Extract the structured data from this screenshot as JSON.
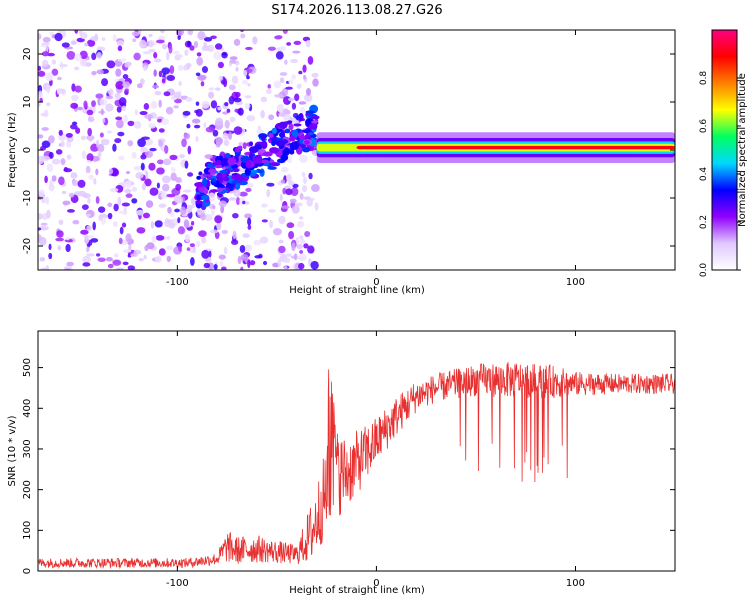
{
  "title": "S174.2026.113.08.27.G26",
  "chart_data": [
    {
      "type": "heatmap",
      "xlabel": "Height of straight line (km)",
      "ylabel": "Frequency (Hz)",
      "xlim": [
        -170,
        150
      ],
      "ylim": [
        -25,
        25
      ],
      "xticks": [
        -100,
        0,
        100
      ],
      "xtick_labels": [
        "-100",
        "0",
        "100"
      ],
      "yticks": [
        -20,
        -10,
        0,
        10,
        20
      ],
      "ytick_labels": [
        "-20",
        "-10",
        "0",
        "10",
        "20"
      ],
      "grid": false,
      "colorbar": {
        "label": "Normalized spectral amplitude",
        "range": [
          0,
          1
        ],
        "ticks": [
          0.0,
          0.2,
          0.4,
          0.6,
          0.8
        ],
        "tick_labels": [
          "0.0",
          "0.2",
          "0.4",
          "0.6",
          "0.8"
        ],
        "colormap": [
          "#ffffff",
          "#e0c8ff",
          "#9000ff",
          "#0000ff",
          "#00d8ff",
          "#00ff60",
          "#ffff00",
          "#ff8000",
          "#ff0000",
          "#ff0080"
        ]
      },
      "regions": [
        {
          "name": "scattered-noise",
          "x_range": [
            -170,
            -40
          ],
          "freq_range": [
            -25,
            25
          ],
          "amplitude": 0.1
        },
        {
          "name": "onset-ramp",
          "x_range": [
            -90,
            -30
          ],
          "freq_start": -8,
          "freq_end": 5,
          "amplitude": 0.3
        },
        {
          "name": "main-line",
          "x_range": [
            -30,
            150
          ],
          "freq": 0.5,
          "amplitude": 0.9
        }
      ]
    },
    {
      "type": "line",
      "xlabel": "Height of straight line (km)",
      "ylabel": "SNR (10 * v/v)",
      "xlim": [
        -170,
        150
      ],
      "ylim": [
        0,
        590
      ],
      "xticks": [
        -100,
        0,
        100
      ],
      "xtick_labels": [
        "-100",
        "0",
        "100"
      ],
      "yticks": [
        0,
        100,
        200,
        300,
        400,
        500
      ],
      "ytick_labels": [
        "0",
        "100",
        "200",
        "300",
        "400",
        "500"
      ],
      "grid": false,
      "series": [
        {
          "name": "SNR",
          "color": "#e83030",
          "envelope_x": [
            -170,
            -95,
            -80,
            -75,
            -70,
            -60,
            -55,
            -40,
            -32,
            -25,
            -20,
            -15,
            -5,
            0,
            10,
            20,
            30,
            50,
            70,
            90,
            100,
            120,
            150
          ],
          "envelope_y": [
            20,
            20,
            30,
            60,
            50,
            55,
            50,
            40,
            100,
            200,
            240,
            240,
            290,
            320,
            380,
            430,
            450,
            470,
            470,
            465,
            460,
            460,
            460
          ],
          "noise_amplitude": [
            12,
            12,
            15,
            40,
            35,
            35,
            30,
            25,
            80,
            110,
            110,
            90,
            70,
            60,
            50,
            40,
            35,
            40,
            45,
            40,
            30,
            25,
            25
          ]
        }
      ]
    }
  ]
}
